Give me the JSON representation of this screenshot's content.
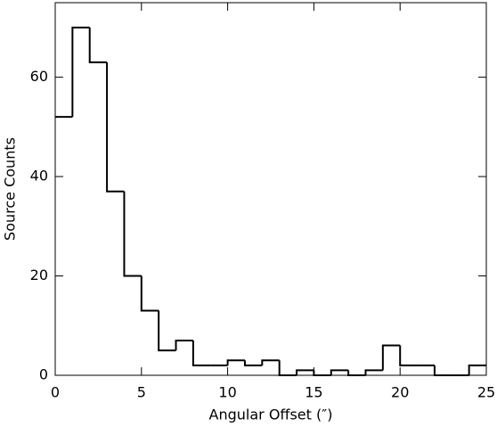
{
  "chart_data": {
    "type": "histogram",
    "xlabel": "Angular Offset (″)",
    "ylabel": "Source Counts",
    "bins": [
      0,
      1,
      2,
      3,
      4,
      5,
      6,
      7,
      8,
      9,
      10,
      11,
      12,
      13,
      14,
      15,
      16,
      17,
      18,
      19,
      20,
      21,
      22,
      23,
      24,
      25
    ],
    "values": [
      52,
      70,
      63,
      37,
      20,
      13,
      5,
      7,
      2,
      2,
      3,
      2,
      3,
      0,
      1,
      0,
      1,
      0,
      1,
      6,
      2,
      2,
      0,
      0,
      2
    ],
    "color": "#000000",
    "xlim": [
      0,
      25
    ],
    "xticks": [
      0,
      5,
      10,
      15,
      20,
      25
    ],
    "ylim": [
      0,
      75
    ],
    "yticks": [
      0,
      20,
      40,
      60
    ],
    "grid": false
  }
}
